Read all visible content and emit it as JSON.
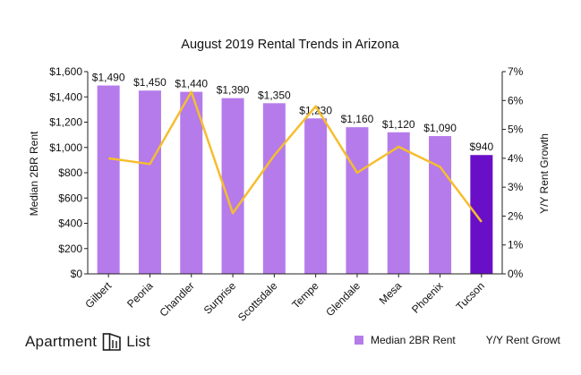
{
  "chart_data": {
    "type": "bar",
    "title": "August 2019 Rental Trends in Arizona",
    "categories": [
      "Gilbert",
      "Peoria",
      "Chandler",
      "Surprise",
      "Scottsdale",
      "Tempe",
      "Glendale",
      "Mesa",
      "Phoenix",
      "Tucson"
    ],
    "series": [
      {
        "name": "Median 2BR Rent",
        "type": "bar",
        "axis": "left",
        "values": [
          1490,
          1450,
          1440,
          1390,
          1350,
          1230,
          1160,
          1120,
          1090,
          940
        ],
        "labels": [
          "$1,490",
          "$1,450",
          "$1,440",
          "$1,390",
          "$1,350",
          "$1,230",
          "$1,160",
          "$1,120",
          "$1,090",
          "$940"
        ],
        "color": "#B57BEB",
        "highlight_color": "#6A0FC8",
        "highlight_index": 9
      },
      {
        "name": "Y/Y Rent Growt",
        "type": "line",
        "axis": "right",
        "values": [
          4.0,
          3.8,
          6.3,
          2.1,
          4.1,
          5.8,
          3.5,
          4.4,
          3.7,
          1.8
        ],
        "color": "#F5BE2E"
      }
    ],
    "ylabel": "Median 2BR Rent",
    "y2label": "Y/Y Rent Growth",
    "ylim": [
      0,
      1600
    ],
    "y2lim": [
      0,
      7
    ],
    "yticks": [
      "$0",
      "$200",
      "$400",
      "$600",
      "$800",
      "$1,000",
      "$1,200",
      "$1,400",
      "$1,600"
    ],
    "y2ticks": [
      "0%",
      "1%",
      "2%",
      "3%",
      "4%",
      "5%",
      "6%",
      "7%"
    ],
    "grid": false,
    "legend_position": "bottom-right"
  },
  "brand": {
    "word1": "Apartment",
    "word2": "List",
    "logo_icon": "apartment-list-logo-icon"
  }
}
